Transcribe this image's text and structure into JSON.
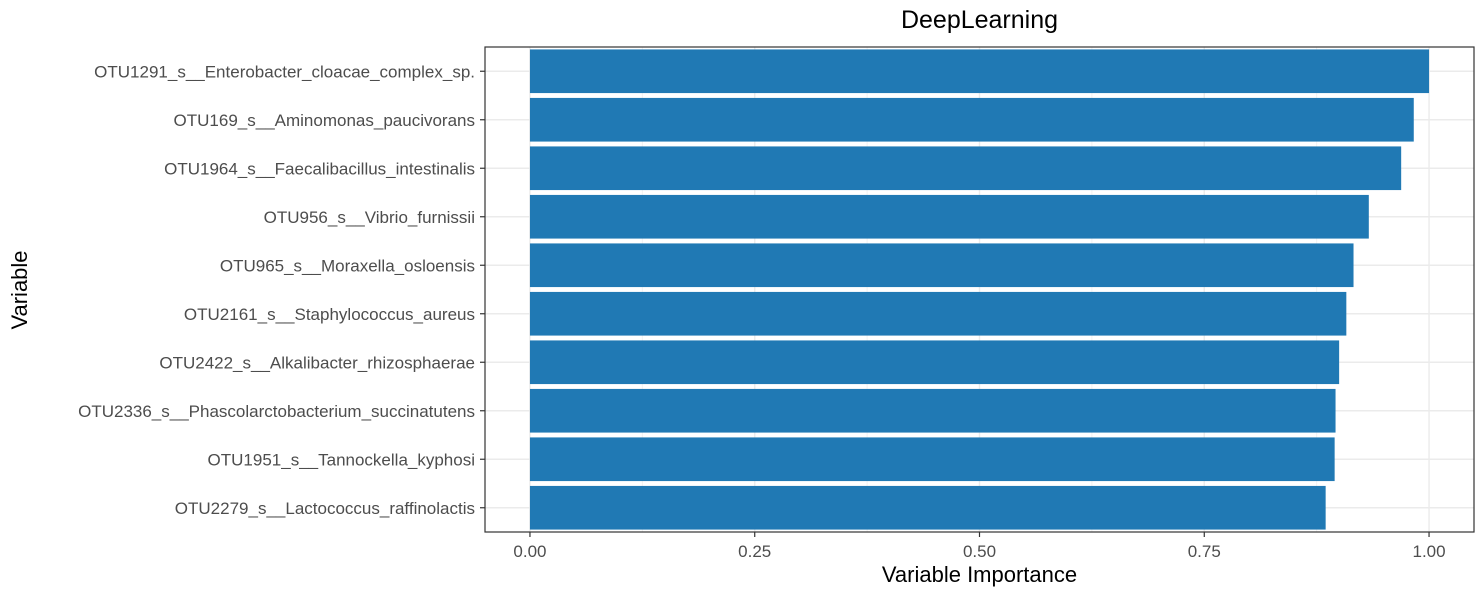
{
  "chart_data": {
    "type": "bar",
    "orientation": "horizontal",
    "title": "DeepLearning",
    "xlabel": "Variable Importance",
    "ylabel": "Variable",
    "xlim": [
      -0.05,
      1.05
    ],
    "xticks": [
      "0.00",
      "0.25",
      "0.50",
      "0.75",
      "1.00"
    ],
    "xtick_values": [
      0,
      0.25,
      0.5,
      0.75,
      1.0
    ],
    "grid": true,
    "legend": "none",
    "bar_color": "#2079B4",
    "categories": [
      "OTU1291_s__Enterobacter_cloacae_complex_sp.",
      "OTU169_s__Aminomonas_paucivorans",
      "OTU1964_s__Faecalibacillus_intestinalis",
      "OTU956_s__Vibrio_furnissii",
      "OTU965_s__Moraxella_osloensis",
      "OTU2161_s__Staphylococcus_aureus",
      "OTU2422_s__Alkalibacter_rhizosphaerae",
      "OTU2336_s__Phascolarctobacterium_succinatutens",
      "OTU1951_s__Tannockella_kyphosi",
      "OTU2279_s__Lactococcus_raffinolactis"
    ],
    "values": [
      1.0,
      0.983,
      0.969,
      0.933,
      0.916,
      0.908,
      0.9,
      0.896,
      0.895,
      0.885
    ]
  }
}
